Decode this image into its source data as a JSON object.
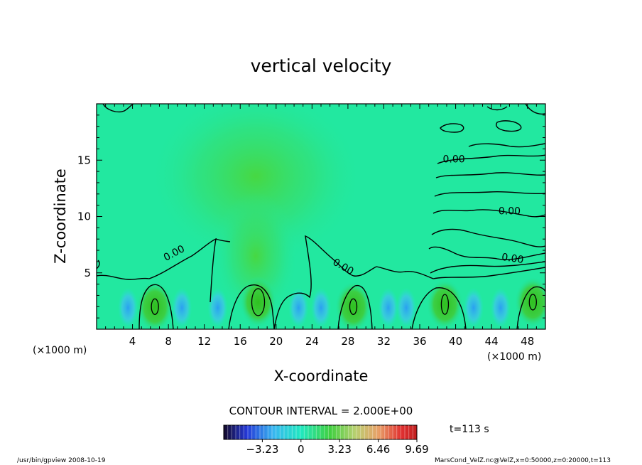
{
  "chart_data": {
    "type": "heatmap",
    "title": "vertical velocity",
    "xlabel": "X-coordinate",
    "ylabel": "Z-coordinate",
    "x_unit": "(×1000 m)",
    "y_unit": "(×1000 m)",
    "xlim": [
      0,
      50
    ],
    "ylim": [
      0,
      20
    ],
    "x_ticks": [
      "4",
      "8",
      "12",
      "16",
      "20",
      "24",
      "28",
      "32",
      "36",
      "40",
      "44",
      "48"
    ],
    "x_tick_values": [
      4,
      8,
      12,
      16,
      20,
      24,
      28,
      32,
      36,
      40,
      44,
      48
    ],
    "y_ticks": [
      "5",
      "10",
      "15"
    ],
    "y_tick_values": [
      5,
      10,
      15
    ],
    "contour_labels": [
      {
        "text": "0.00",
        "x": 8.8,
        "z": 6.5
      },
      {
        "text": "0.00",
        "x": 27.3,
        "z": 5.3
      },
      {
        "text": "0.00",
        "x": 39.8,
        "z": 14.8
      },
      {
        "text": "0.00",
        "x": 46.0,
        "z": 10.2
      },
      {
        "text": "0.00",
        "x": 46.3,
        "z": 6.0
      }
    ],
    "updraft_centers": [
      {
        "x": 6.5,
        "z": 2.0
      },
      {
        "x": 18.0,
        "z": 2.4
      },
      {
        "x": 28.6,
        "z": 2.0
      },
      {
        "x": 38.8,
        "z": 2.2
      },
      {
        "x": 48.6,
        "z": 2.4
      }
    ],
    "contour_interval": "CONTOUR INTERVAL = 2.000E+00",
    "colorbar": {
      "tick_labels": [
        "−3.23",
        "0",
        "3.23",
        "6.46",
        "9.69"
      ],
      "tick_values": [
        -3.23,
        0,
        3.23,
        6.46,
        9.69
      ],
      "range": [
        -6.46,
        9.69
      ]
    },
    "time_label": "t=113 s",
    "footer_left": "/usr/bin/gpview  2008-10-19",
    "footer_right": "MarsCond_VelZ.nc@VelZ,x=0:50000,z=0:20000,t=113"
  }
}
